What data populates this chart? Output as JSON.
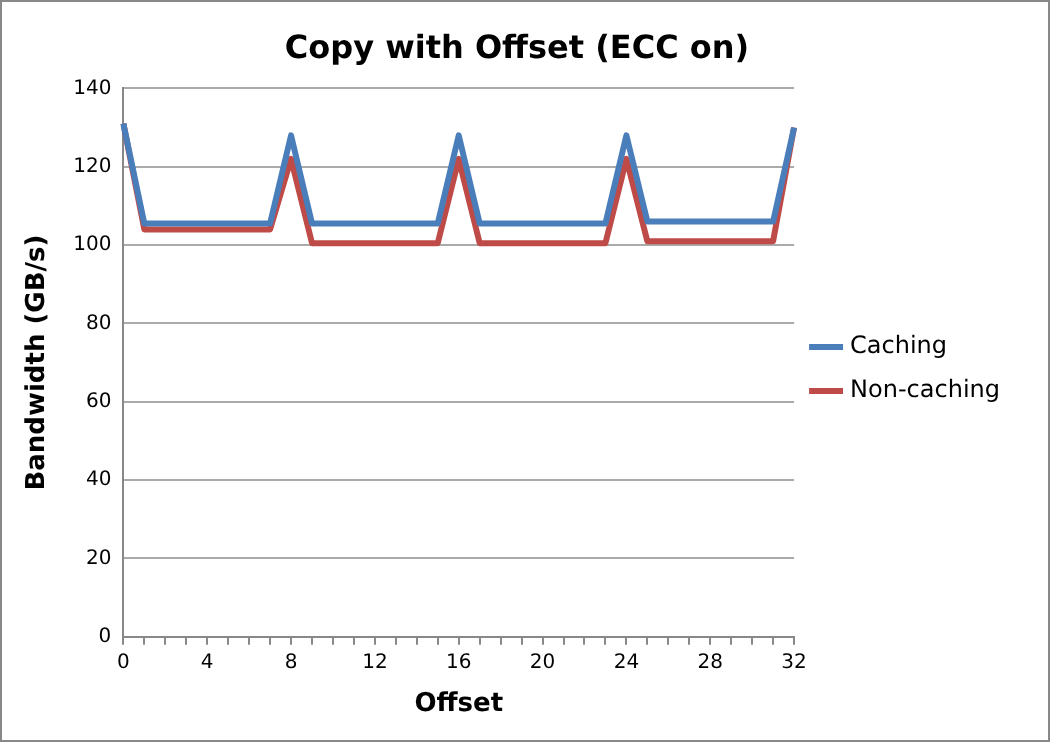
{
  "chart_data": {
    "type": "line",
    "title": "Copy with Offset (ECC on)",
    "xlabel": "Offset",
    "ylabel": "Bandwidth (GB/s)",
    "categories": [
      "0",
      null,
      null,
      null,
      "4",
      null,
      null,
      null,
      "8",
      null,
      null,
      null,
      "12",
      null,
      null,
      null,
      "16",
      null,
      null,
      null,
      "20",
      null,
      null,
      null,
      "24",
      null,
      null,
      null,
      "28",
      null,
      null,
      null,
      "32"
    ],
    "series": [
      {
        "name": "Caching",
        "color": "#4a7ebb",
        "values": [
          131,
          105.5,
          105.5,
          105.5,
          105.5,
          105.5,
          105.5,
          105.5,
          128,
          105.5,
          105.5,
          105.5,
          105.5,
          105.5,
          105.5,
          105.5,
          128,
          105.5,
          105.5,
          105.5,
          105.5,
          105.5,
          105.5,
          105.5,
          128,
          106,
          106,
          106,
          106,
          106,
          106,
          106,
          130
        ]
      },
      {
        "name": "Non-caching",
        "color": "#be4b48",
        "values": [
          131,
          104,
          104,
          104,
          104,
          104,
          104,
          104,
          122,
          100.5,
          100.5,
          100.5,
          100.5,
          100.5,
          100.5,
          100.5,
          122,
          100.5,
          100.5,
          100.5,
          100.5,
          100.5,
          100.5,
          100.5,
          122,
          101,
          101,
          101,
          101,
          101,
          101,
          101,
          130
        ]
      }
    ],
    "ylim": [
      0,
      140
    ],
    "yticks": [
      0,
      20,
      40,
      60,
      80,
      100,
      120,
      140
    ],
    "grid": "y",
    "legend": "right",
    "marker": "none",
    "line_style": "solid"
  }
}
